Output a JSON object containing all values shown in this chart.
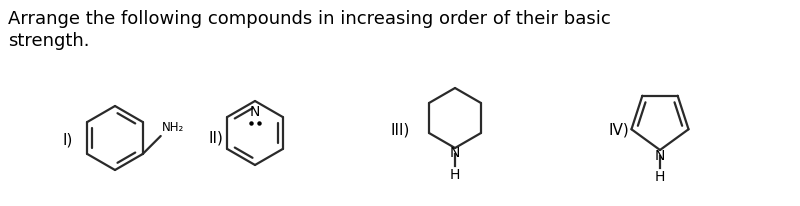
{
  "title_line1": "Arrange the following compounds in increasing order of their basic",
  "title_line2": "strength.",
  "background_color": "#ffffff",
  "text_color": "#000000",
  "label_I": "I)",
  "label_II": "II)",
  "label_III": "III)",
  "label_IV": "IV)",
  "fig_width": 8.0,
  "fig_height": 2.06,
  "dpi": 100,
  "title_fontsize": 13.0,
  "label_fontsize": 11,
  "struct_color": "#2a2a2a",
  "struct_linewidth": 1.6,
  "xlim": [
    0,
    800
  ],
  "ylim": [
    0,
    206
  ]
}
